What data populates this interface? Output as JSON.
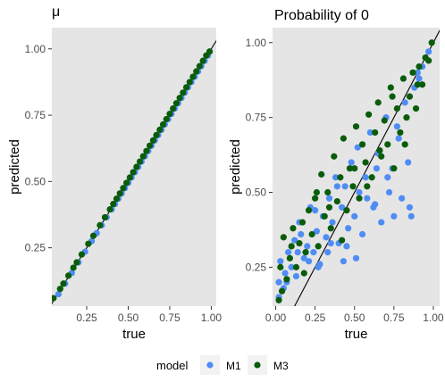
{
  "chart_data": [
    {
      "type": "scatter",
      "title": "μ",
      "xlabel": "true",
      "ylabel": "predicted",
      "xlim": [
        0.04,
        1.03
      ],
      "ylim": [
        0.03,
        1.08
      ],
      "xticks": [
        0.25,
        0.5,
        0.75,
        1.0
      ],
      "xtick_labels": [
        "0.25",
        "0.50",
        "0.75",
        "1.00"
      ],
      "yticks": [
        0.25,
        0.5,
        0.75,
        1.0
      ],
      "ytick_labels": [
        "0.25",
        "0.50",
        "0.75",
        "1.00"
      ],
      "reference_line": "y = x",
      "background": "#e5e5e5",
      "grid": false,
      "series": [
        {
          "name": "M1",
          "color": "#4f8df5",
          "x": [
            0.08,
            0.12,
            0.16,
            0.2,
            0.24,
            0.28,
            0.31,
            0.34,
            0.37,
            0.4,
            0.42,
            0.44,
            0.46,
            0.48,
            0.5,
            0.52,
            0.54,
            0.56,
            0.58,
            0.6,
            0.62,
            0.64,
            0.66,
            0.68,
            0.7,
            0.72,
            0.74,
            0.76,
            0.78,
            0.8,
            0.82,
            0.84,
            0.86,
            0.88,
            0.9,
            0.92,
            0.94,
            0.96,
            0.98
          ],
          "y": [
            0.075,
            0.115,
            0.155,
            0.195,
            0.235,
            0.275,
            0.305,
            0.335,
            0.365,
            0.395,
            0.415,
            0.435,
            0.455,
            0.475,
            0.495,
            0.515,
            0.535,
            0.555,
            0.575,
            0.595,
            0.615,
            0.635,
            0.655,
            0.675,
            0.695,
            0.715,
            0.735,
            0.755,
            0.775,
            0.795,
            0.815,
            0.835,
            0.855,
            0.875,
            0.895,
            0.915,
            0.935,
            0.955,
            0.975
          ]
        },
        {
          "name": "M3",
          "color": "#0a5c0a",
          "x": [
            0.05,
            0.09,
            0.11,
            0.14,
            0.17,
            0.19,
            0.22,
            0.26,
            0.29,
            0.33,
            0.36,
            0.39,
            0.41,
            0.43,
            0.45,
            0.47,
            0.49,
            0.51,
            0.53,
            0.55,
            0.57,
            0.59,
            0.61,
            0.63,
            0.65,
            0.67,
            0.69,
            0.71,
            0.73,
            0.75,
            0.77,
            0.79,
            0.81,
            0.83,
            0.85,
            0.87,
            0.89,
            0.91,
            0.93,
            0.95,
            0.97,
            0.99
          ],
          "y": [
            0.06,
            0.095,
            0.115,
            0.145,
            0.175,
            0.195,
            0.225,
            0.265,
            0.295,
            0.335,
            0.365,
            0.395,
            0.415,
            0.435,
            0.455,
            0.475,
            0.495,
            0.515,
            0.535,
            0.555,
            0.575,
            0.595,
            0.615,
            0.635,
            0.655,
            0.675,
            0.695,
            0.715,
            0.735,
            0.755,
            0.775,
            0.795,
            0.815,
            0.835,
            0.855,
            0.875,
            0.895,
            0.915,
            0.935,
            0.955,
            0.975,
            0.99
          ]
        }
      ]
    },
    {
      "type": "scatter",
      "title": "Probability of 0",
      "xlabel": "true",
      "ylabel": "predicted",
      "xlim": [
        -0.02,
        1.04
      ],
      "ylim": [
        0.12,
        1.05
      ],
      "xticks": [
        0.0,
        0.25,
        0.5,
        0.75,
        1.0
      ],
      "xtick_labels": [
        "0.00",
        "0.25",
        "0.50",
        "0.75",
        "1.00"
      ],
      "yticks": [
        0.25,
        0.5,
        0.75,
        1.0
      ],
      "ytick_labels": [
        "0.25",
        "0.50",
        "0.75",
        "1.00"
      ],
      "reference_line": "y = x",
      "background": "#e5e5e5",
      "grid": false,
      "series": [
        {
          "name": "M1",
          "color": "#4f8df5",
          "x": [
            0.02,
            0.03,
            0.05,
            0.06,
            0.08,
            0.1,
            0.12,
            0.13,
            0.15,
            0.18,
            0.2,
            0.22,
            0.24,
            0.26,
            0.28,
            0.3,
            0.32,
            0.34,
            0.36,
            0.38,
            0.4,
            0.42,
            0.44,
            0.46,
            0.48,
            0.5,
            0.52,
            0.55,
            0.57,
            0.6,
            0.62,
            0.65,
            0.67,
            0.7,
            0.72,
            0.75,
            0.78,
            0.8,
            0.82,
            0.85,
            0.88,
            0.9,
            0.93,
            0.95,
            0.02,
            0.07,
            0.14,
            0.21,
            0.27,
            0.33,
            0.39,
            0.45,
            0.51,
            0.58,
            0.64,
            0.71,
            0.77,
            0.84,
            0.91,
            0.97,
            0.16,
            0.25,
            0.35,
            0.43,
            0.53,
            0.63,
            0.74,
            0.86
          ],
          "y": [
            0.2,
            0.27,
            0.18,
            0.23,
            0.3,
            0.25,
            0.34,
            0.22,
            0.4,
            0.28,
            0.32,
            0.45,
            0.3,
            0.37,
            0.26,
            0.42,
            0.35,
            0.48,
            0.4,
            0.55,
            0.33,
            0.45,
            0.52,
            0.38,
            0.6,
            0.42,
            0.65,
            0.36,
            0.55,
            0.7,
            0.45,
            0.63,
            0.4,
            0.75,
            0.5,
            0.42,
            0.68,
            0.48,
            0.8,
            0.45,
            0.85,
            0.9,
            0.92,
            0.95,
            0.15,
            0.2,
            0.3,
            0.27,
            0.25,
            0.3,
            0.52,
            0.32,
            0.28,
            0.48,
            0.58,
            0.55,
            0.72,
            0.6,
            0.88,
            0.97,
            0.36,
            0.44,
            0.33,
            0.27,
            0.5,
            0.46,
            0.58,
            0.42
          ]
        },
        {
          "name": "M3",
          "color": "#0a5c0a",
          "x": [
            0.02,
            0.04,
            0.05,
            0.07,
            0.09,
            0.11,
            0.13,
            0.15,
            0.17,
            0.19,
            0.21,
            0.23,
            0.25,
            0.27,
            0.29,
            0.31,
            0.33,
            0.35,
            0.37,
            0.39,
            0.41,
            0.43,
            0.45,
            0.47,
            0.49,
            0.51,
            0.53,
            0.55,
            0.57,
            0.59,
            0.61,
            0.63,
            0.65,
            0.67,
            0.69,
            0.71,
            0.73,
            0.75,
            0.77,
            0.79,
            0.81,
            0.83,
            0.85,
            0.87,
            0.89,
            0.91,
            0.93,
            0.95,
            0.97,
            0.99,
            0.03,
            0.1,
            0.18,
            0.26,
            0.34,
            0.42,
            0.5,
            0.58,
            0.66,
            0.74,
            0.82,
            0.9
          ],
          "y": [
            0.14,
            0.17,
            0.35,
            0.21,
            0.28,
            0.38,
            0.25,
            0.33,
            0.4,
            0.3,
            0.44,
            0.36,
            0.48,
            0.32,
            0.56,
            0.42,
            0.5,
            0.38,
            0.62,
            0.47,
            0.55,
            0.68,
            0.44,
            0.58,
            0.52,
            0.72,
            0.48,
            0.66,
            0.6,
            0.76,
            0.55,
            0.7,
            0.8,
            0.62,
            0.74,
            0.66,
            0.85,
            0.58,
            0.78,
            0.7,
            0.88,
            0.75,
            0.82,
            0.9,
            0.78,
            0.92,
            0.86,
            0.95,
            0.94,
            1.0,
            0.25,
            0.32,
            0.23,
            0.5,
            0.45,
            0.34,
            0.58,
            0.52,
            0.64,
            0.82,
            0.66,
            0.86
          ]
        }
      ]
    }
  ],
  "legend": {
    "title": "model",
    "entries": [
      {
        "label": "M1",
        "color": "#4f8df5"
      },
      {
        "label": "M3",
        "color": "#0a5c0a"
      }
    ]
  }
}
